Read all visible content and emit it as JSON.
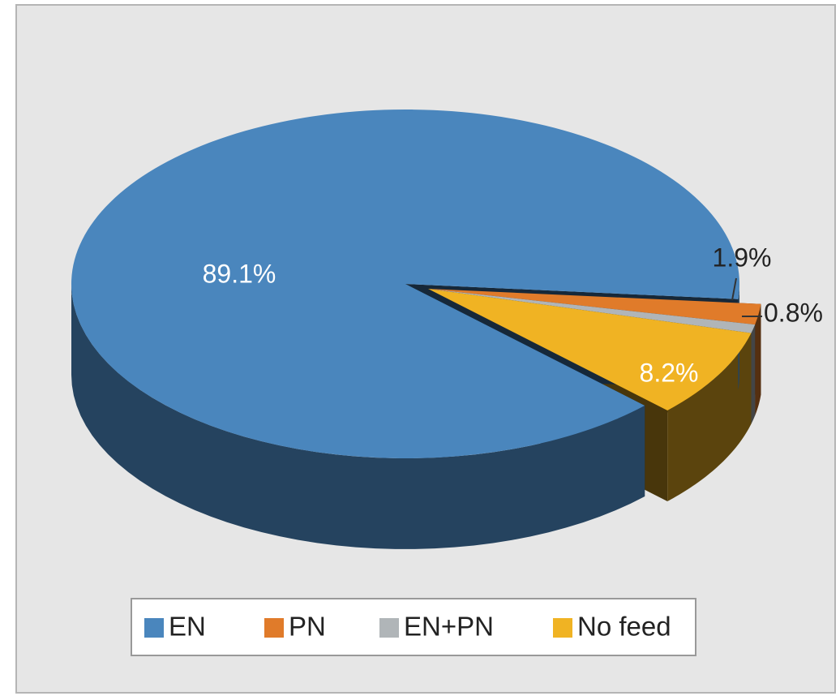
{
  "chart_data": {
    "type": "pie",
    "categories": [
      "EN",
      "PN",
      "EN+PN",
      "No feed"
    ],
    "values": [
      89.1,
      1.9,
      0.8,
      8.2
    ],
    "value_labels": [
      "89.1%",
      "1.9%",
      "0.8%",
      "8.2%"
    ],
    "colors": [
      "#4a86bd",
      "#e07b2a",
      "#b0b5b8",
      "#f0b323"
    ],
    "legend": "bottom"
  }
}
